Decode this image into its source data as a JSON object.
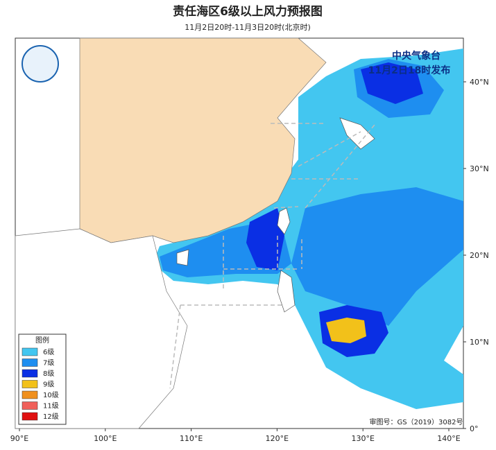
{
  "header": {
    "title": "责任海区6级以上风力预报图",
    "subtitle": "11月2日20时-11月3日20时(北京时)"
  },
  "issuer": {
    "name": "中央气象台",
    "issued": "11月2日18时发布"
  },
  "legend": {
    "title": "图例",
    "items": [
      {
        "label": "6级",
        "color": "#43c6f0"
      },
      {
        "label": "7级",
        "color": "#1e8ef0"
      },
      {
        "label": "8级",
        "color": "#0a2fe4"
      },
      {
        "label": "9级",
        "color": "#f2c11a"
      },
      {
        "label": "10级",
        "color": "#f0901e"
      },
      {
        "label": "11级",
        "color": "#f0605a"
      },
      {
        "label": "12级",
        "color": "#e01010"
      }
    ]
  },
  "axes": {
    "x_labels": [
      "90°E",
      "100°E",
      "110°E",
      "120°E",
      "130°E",
      "140°E"
    ],
    "y_labels": [
      "40°N",
      "30°N",
      "20°N",
      "10°N",
      "0°"
    ]
  },
  "approval": "审图号：GS（2019）3082号"
}
